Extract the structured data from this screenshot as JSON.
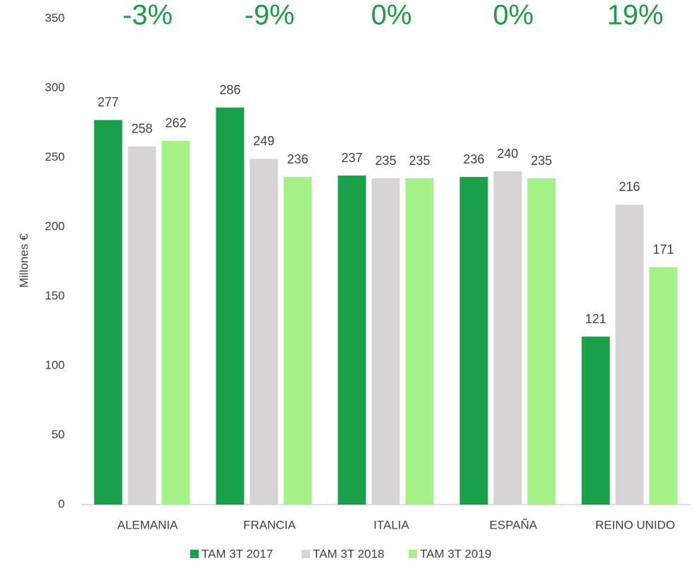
{
  "chart_data": {
    "type": "bar",
    "y_axis_label": "Millones €",
    "categories": [
      "ALEMANIA",
      "FRANCIA",
      "ITALIA",
      "ESPAÑA",
      "REINO UNIDO"
    ],
    "annotations": [
      "-3%",
      "-9%",
      "0%",
      "0%",
      "19%"
    ],
    "series": [
      {
        "name": "TAM 3T 2017",
        "color": "#1aa04a",
        "values": [
          277,
          286,
          237,
          236,
          121
        ]
      },
      {
        "name": "TAM 3T 2018",
        "color": "#d6d4d4",
        "values": [
          258,
          249,
          235,
          240,
          216
        ]
      },
      {
        "name": "TAM 3T 2019",
        "color": "#a6f088",
        "values": [
          262,
          236,
          235,
          235,
          171
        ]
      }
    ],
    "ylim": [
      0,
      350
    ],
    "yticks": [
      0,
      50,
      100,
      150,
      200,
      250,
      300,
      350
    ],
    "grid": false
  }
}
